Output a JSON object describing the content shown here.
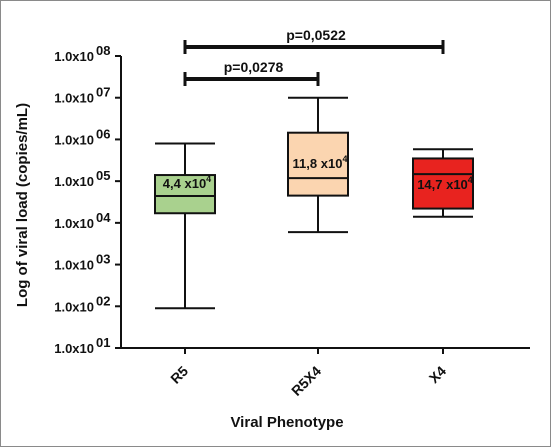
{
  "chart_data": {
    "type": "box",
    "xlabel": "Viral Phenotype",
    "ylabel": "Log of viral load (copies/mL)",
    "y_scale": "log",
    "ylim": [
      10,
      100000000
    ],
    "y_ticks": [
      {
        "value": 10,
        "mantissa": "1.0x10",
        "exp": "01"
      },
      {
        "value": 100,
        "mantissa": "1.0x10",
        "exp": "02"
      },
      {
        "value": 1000,
        "mantissa": "1.0x10",
        "exp": "03"
      },
      {
        "value": 10000,
        "mantissa": "1.0x10",
        "exp": "04"
      },
      {
        "value": 100000,
        "mantissa": "1.0x10",
        "exp": "05"
      },
      {
        "value": 1000000,
        "mantissa": "1.0x10",
        "exp": "06"
      },
      {
        "value": 10000000,
        "mantissa": "1.0x10",
        "exp": "07"
      },
      {
        "value": 100000000,
        "mantissa": "1.0x10",
        "exp": "08"
      }
    ],
    "categories": [
      "R5",
      "R5X4",
      "X4"
    ],
    "boxes": [
      {
        "category": "R5",
        "min": 90,
        "q1": 17000,
        "median": 44000,
        "q3": 140000,
        "max": 800000,
        "label": "4,4 x10",
        "label_exp": "4",
        "color": "#a9d18e"
      },
      {
        "category": "R5X4",
        "min": 6000,
        "q1": 45000,
        "median": 118000,
        "q3": 1450000,
        "max": 10000000,
        "label": "11,8 x10",
        "label_exp": "4",
        "color": "#fbd5b0"
      },
      {
        "category": "X4",
        "min": 14000,
        "q1": 22000,
        "median": 147000,
        "q3": 350000,
        "max": 580000,
        "label": "14,7 x10",
        "label_exp": "4",
        "color": "#e8231f"
      }
    ],
    "significance": [
      {
        "from": "R5",
        "to": "X4",
        "label": "p=0,0522",
        "level": 200000000
      },
      {
        "from": "R5",
        "to": "R5X4",
        "label": "p=0,0278",
        "level": 30000000
      }
    ]
  }
}
